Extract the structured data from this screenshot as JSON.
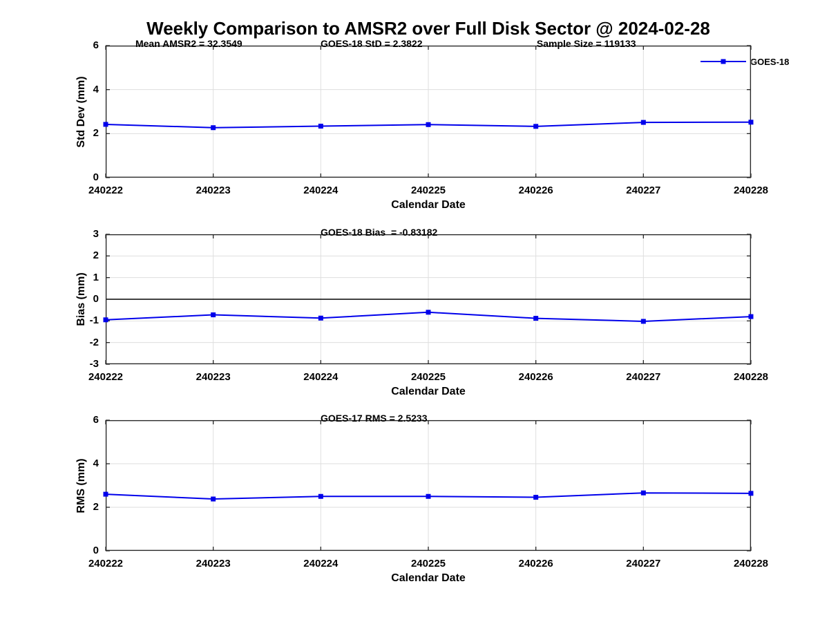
{
  "title": "Weekly Comparison to AMSR2 over Full Disk Sector @ 2024-02-28",
  "legend": {
    "label": "GOES-18"
  },
  "colors": {
    "line": "#0000EB",
    "grid": "#DEDEDE",
    "axis": "#262626",
    "zero_line": "#000000",
    "background": "#FFFFFF",
    "text": "#000000"
  },
  "chart_data": [
    {
      "type": "line",
      "categories": [
        "240222",
        "240223",
        "240224",
        "240225",
        "240226",
        "240227",
        "240228"
      ],
      "series": [
        {
          "name": "GOES-18",
          "values": [
            2.42,
            2.27,
            2.34,
            2.41,
            2.33,
            2.51,
            2.52
          ]
        }
      ],
      "xlabel": "Calendar Date",
      "ylabel": "Std Dev (mm)",
      "ylim": [
        0,
        6
      ],
      "yticks": [
        0,
        2,
        4,
        6
      ],
      "grid": true,
      "zero_line": false,
      "legend_position": "top-right-outside",
      "annotations": [
        {
          "text": "Mean AMSR2 = 32.3549",
          "xfrac": 0.046
        },
        {
          "text": "GOES-18 StD = 2.3822",
          "xfrac": 0.333
        },
        {
          "text": "Sample Size = 119133",
          "xfrac": 0.668
        }
      ]
    },
    {
      "type": "line",
      "categories": [
        "240222",
        "240223",
        "240224",
        "240225",
        "240226",
        "240227",
        "240228"
      ],
      "series": [
        {
          "name": "GOES-18",
          "values": [
            -0.95,
            -0.72,
            -0.87,
            -0.6,
            -0.88,
            -1.02,
            -0.8
          ]
        }
      ],
      "xlabel": "Calendar Date",
      "ylabel": "Bias (mm)",
      "ylim": [
        -3,
        3
      ],
      "yticks": [
        -3,
        -2,
        -1,
        0,
        1,
        2,
        3
      ],
      "grid": true,
      "zero_line": true,
      "annotations": [
        {
          "text": "GOES-18 Bias  = -0.83182",
          "xfrac": 0.333
        }
      ]
    },
    {
      "type": "line",
      "categories": [
        "240222",
        "240223",
        "240224",
        "240225",
        "240226",
        "240227",
        "240228"
      ],
      "series": [
        {
          "name": "GOES-18",
          "values": [
            2.6,
            2.38,
            2.5,
            2.5,
            2.46,
            2.66,
            2.64
          ]
        }
      ],
      "xlabel": "Calendar Date",
      "ylabel": "RMS (mm)",
      "ylim": [
        0,
        6
      ],
      "yticks": [
        0,
        2,
        4,
        6
      ],
      "grid": true,
      "zero_line": false,
      "annotations": [
        {
          "text": "GOES-17 RMS = 2.5233",
          "xfrac": 0.333
        }
      ]
    }
  ]
}
